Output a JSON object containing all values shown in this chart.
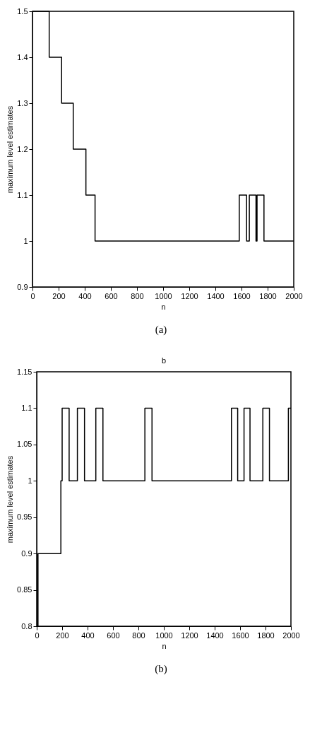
{
  "chart_data": [
    {
      "type": "step",
      "xlabel": "n",
      "ylabel": "maximum level estimates",
      "xlim": [
        0,
        2000
      ],
      "ylim": [
        0.9,
        1.5
      ],
      "xticks": [
        0,
        200,
        400,
        600,
        800,
        1000,
        1200,
        1400,
        1600,
        1800,
        2000
      ],
      "yticks": [
        0.9,
        1,
        1.1,
        1.2,
        1.3,
        1.4,
        1.5
      ],
      "grid": false,
      "annotations": [
        "(a)"
      ],
      "series": [
        {
          "color": "#000000",
          "x": [
            0,
            128,
            223,
            312,
            409,
            479,
            1583,
            1639,
            1660,
            1711,
            1719,
            1772,
            2000
          ],
          "values": [
            1.5,
            1.4,
            1.3,
            1.2,
            1.1,
            1.0,
            1.1,
            1.0,
            1.1,
            1.0,
            1.1,
            1.0,
            1.0
          ]
        }
      ]
    },
    {
      "type": "step",
      "title": "b",
      "xlabel": "n",
      "ylabel": "maximum level estimates",
      "xlim": [
        0,
        2000
      ],
      "ylim": [
        0.8,
        1.15
      ],
      "xticks": [
        0,
        200,
        400,
        600,
        800,
        1000,
        1200,
        1400,
        1600,
        1800,
        2000
      ],
      "yticks": [
        0.8,
        0.85,
        0.9,
        0.95,
        1,
        1.05,
        1.1,
        1.15
      ],
      "grid": false,
      "annotations": [
        "(b)"
      ],
      "series": [
        {
          "color": "#000000",
          "x": [
            0,
            10,
            190,
            200,
            255,
            320,
            376,
            465,
            521,
            851,
            907,
            1532,
            1581,
            1631,
            1678,
            1779,
            1831,
            1980,
            2000
          ],
          "values": [
            0.8,
            0.9,
            1.0,
            1.1,
            1.0,
            1.1,
            1.0,
            1.1,
            1.0,
            1.1,
            1.0,
            1.1,
            1.0,
            1.1,
            1.0,
            1.1,
            1.0,
            1.1,
            1.1
          ]
        }
      ]
    }
  ]
}
